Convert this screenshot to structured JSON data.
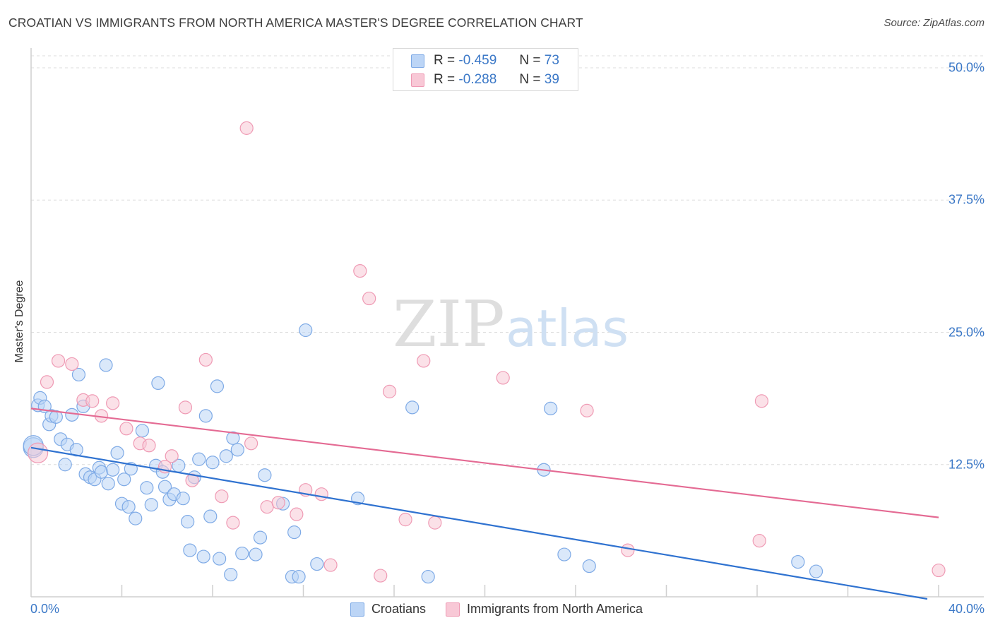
{
  "header": {
    "title": "CROATIAN VS IMMIGRANTS FROM NORTH AMERICA MASTER'S DEGREE CORRELATION CHART",
    "source": "Source: ZipAtlas.com"
  },
  "watermark": {
    "zip": "ZIP",
    "atlas": "atlas"
  },
  "stats": [
    {
      "r_label": "R =",
      "r_value": "-0.459",
      "n_label": "N =",
      "n_value": "73"
    },
    {
      "r_label": "R =",
      "r_value": "-0.288",
      "n_label": "N =",
      "n_value": "39"
    }
  ],
  "legend": {
    "series1": "Croatians",
    "series2": "Immigrants from North America"
  },
  "colors": {
    "blue_fill": "#bcd5f6",
    "blue_stroke": "#7eaae6",
    "blue_line": "#2f72d0",
    "pink_fill": "#f8c8d6",
    "pink_stroke": "#ef9ab4",
    "pink_line": "#e46a93",
    "tick_text": "#3b78c7",
    "grid": "#dcdcdc"
  },
  "chart_data": {
    "type": "scatter",
    "title": "CROATIAN VS IMMIGRANTS FROM NORTH AMERICA MASTER'S DEGREE CORRELATION CHART",
    "xlabel": "",
    "ylabel": "Master's Degree",
    "xlim": [
      0,
      40
    ],
    "ylim": [
      0,
      50
    ],
    "x_tick_labels": [
      "0.0%",
      "40.0%"
    ],
    "y_ticks": [
      12.5,
      25.0,
      37.5,
      50.0
    ],
    "y_tick_labels": [
      "12.5%",
      "25.0%",
      "37.5%",
      "50.0%"
    ],
    "grid": true,
    "legend_position": "bottom-center",
    "series": [
      {
        "name": "Croatians",
        "color": "#bcd5f6",
        "points": [
          [
            0.1,
            14.1
          ],
          [
            0.3,
            18.1
          ],
          [
            0.4,
            18.8
          ],
          [
            0.6,
            18.0
          ],
          [
            0.8,
            16.3
          ],
          [
            0.9,
            17.1
          ],
          [
            1.1,
            17.0
          ],
          [
            1.3,
            14.9
          ],
          [
            1.5,
            12.5
          ],
          [
            1.6,
            14.4
          ],
          [
            1.8,
            17.2
          ],
          [
            2.0,
            13.9
          ],
          [
            2.1,
            21.0
          ],
          [
            2.3,
            18.0
          ],
          [
            2.4,
            11.6
          ],
          [
            2.6,
            11.3
          ],
          [
            2.8,
            11.1
          ],
          [
            3.0,
            12.2
          ],
          [
            3.1,
            11.8
          ],
          [
            3.3,
            21.9
          ],
          [
            3.4,
            10.7
          ],
          [
            3.6,
            12.0
          ],
          [
            3.8,
            13.6
          ],
          [
            4.0,
            8.8
          ],
          [
            4.1,
            11.1
          ],
          [
            4.3,
            8.5
          ],
          [
            4.4,
            12.1
          ],
          [
            4.6,
            7.4
          ],
          [
            4.9,
            15.7
          ],
          [
            5.1,
            10.3
          ],
          [
            5.3,
            8.7
          ],
          [
            5.5,
            12.4
          ],
          [
            5.6,
            20.2
          ],
          [
            5.8,
            11.8
          ],
          [
            5.9,
            10.4
          ],
          [
            6.1,
            9.2
          ],
          [
            6.3,
            9.7
          ],
          [
            6.5,
            12.4
          ],
          [
            6.7,
            9.3
          ],
          [
            6.9,
            7.1
          ],
          [
            7.0,
            4.4
          ],
          [
            7.2,
            11.3
          ],
          [
            7.4,
            13.0
          ],
          [
            7.6,
            3.8
          ],
          [
            7.7,
            17.1
          ],
          [
            7.9,
            7.6
          ],
          [
            8.0,
            12.7
          ],
          [
            8.2,
            19.9
          ],
          [
            8.3,
            3.6
          ],
          [
            8.6,
            13.3
          ],
          [
            8.8,
            2.1
          ],
          [
            8.9,
            15.0
          ],
          [
            9.1,
            13.9
          ],
          [
            9.3,
            4.1
          ],
          [
            9.9,
            4.0
          ],
          [
            10.1,
            5.6
          ],
          [
            10.3,
            11.5
          ],
          [
            11.1,
            8.8
          ],
          [
            11.5,
            1.9
          ],
          [
            11.6,
            6.1
          ],
          [
            11.8,
            1.9
          ],
          [
            12.1,
            25.2
          ],
          [
            12.6,
            3.1
          ],
          [
            14.4,
            9.3
          ],
          [
            16.8,
            17.9
          ],
          [
            17.5,
            1.9
          ],
          [
            22.6,
            12.0
          ],
          [
            22.9,
            17.8
          ],
          [
            23.5,
            4.0
          ],
          [
            24.6,
            2.9
          ],
          [
            33.8,
            3.3
          ],
          [
            34.6,
            2.4
          ],
          [
            0.1,
            14.3
          ]
        ]
      },
      {
        "name": "Immigrants from North America",
        "color": "#f8c8d6",
        "points": [
          [
            0.3,
            13.6
          ],
          [
            0.7,
            20.3
          ],
          [
            1.2,
            22.3
          ],
          [
            1.8,
            22.0
          ],
          [
            2.3,
            18.6
          ],
          [
            2.7,
            18.5
          ],
          [
            3.1,
            17.1
          ],
          [
            3.6,
            18.3
          ],
          [
            4.2,
            15.9
          ],
          [
            4.8,
            14.5
          ],
          [
            5.2,
            14.3
          ],
          [
            5.9,
            12.3
          ],
          [
            6.2,
            13.3
          ],
          [
            6.8,
            17.9
          ],
          [
            7.1,
            11.0
          ],
          [
            7.7,
            22.4
          ],
          [
            8.4,
            9.5
          ],
          [
            8.9,
            7.0
          ],
          [
            9.5,
            44.3
          ],
          [
            9.7,
            14.5
          ],
          [
            10.4,
            8.5
          ],
          [
            10.9,
            8.9
          ],
          [
            11.7,
            7.8
          ],
          [
            12.1,
            10.1
          ],
          [
            12.8,
            9.7
          ],
          [
            13.2,
            3.0
          ],
          [
            14.5,
            30.8
          ],
          [
            14.9,
            28.2
          ],
          [
            15.4,
            2.0
          ],
          [
            15.8,
            19.4
          ],
          [
            16.5,
            7.3
          ],
          [
            17.3,
            22.3
          ],
          [
            17.8,
            7.0
          ],
          [
            20.8,
            20.7
          ],
          [
            24.5,
            17.6
          ],
          [
            26.3,
            4.4
          ],
          [
            32.1,
            5.3
          ],
          [
            32.2,
            18.5
          ],
          [
            40.0,
            2.5
          ]
        ]
      }
    ],
    "trendlines": [
      {
        "series": "Croatians",
        "x": [
          0,
          39.5
        ],
        "y": [
          14.1,
          -0.2
        ]
      },
      {
        "series": "Immigrants from North America",
        "x": [
          0,
          40
        ],
        "y": [
          17.8,
          7.5
        ]
      }
    ]
  }
}
